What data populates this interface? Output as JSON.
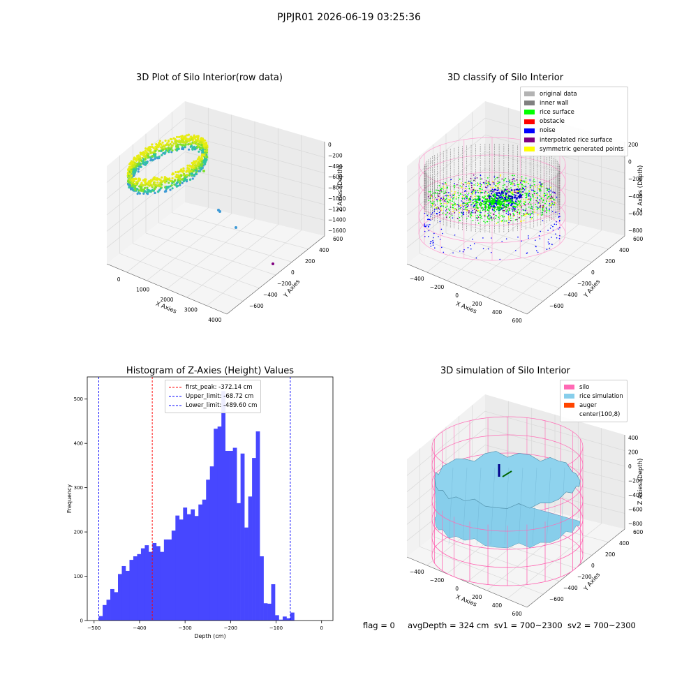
{
  "figure": {
    "suptitle": "PJPJR01 2026-06-19 03:25:36"
  },
  "panels": {
    "raw": {
      "title": "3D Plot of Silo Interior(row data)",
      "xlabel": "X Axies",
      "ylabel": "Y Axies",
      "zlabel": "Z Axies (Depth)",
      "xticks": [
        "0",
        "1000",
        "2000",
        "3000",
        "4000"
      ],
      "yticks": [
        "600",
        "400",
        "200",
        "0",
        "−200",
        "−400",
        "−600"
      ],
      "zticks": [
        "0",
        "−200",
        "−400",
        "−600",
        "−800",
        "−1000",
        "−1200",
        "−1400",
        "−1600"
      ],
      "colormap": [
        "#3e9ad6",
        "#32c4a1",
        "#7ddf2e",
        "#c8e61a",
        "#e7ec12"
      ]
    },
    "classify": {
      "title": "3D classify of Silo Interior",
      "xlabel": "X Axies",
      "ylabel": "Y Axies",
      "zlabel": "Z Axies (Depth)",
      "xticks": [
        "−400",
        "−200",
        "0",
        "200",
        "400",
        "600"
      ],
      "yticks": [
        "600",
        "400",
        "200",
        "0",
        "−200",
        "−400",
        "−600"
      ],
      "zticks": [
        "200",
        "0",
        "−200",
        "−400",
        "−600",
        "−800"
      ],
      "legend": [
        {
          "label": "original data",
          "color": "#b3b3b3"
        },
        {
          "label": "inner wall",
          "color": "#808080"
        },
        {
          "label": "rice surface",
          "color": "#00ff00"
        },
        {
          "label": "obstacle",
          "color": "#ff0000"
        },
        {
          "label": "noise",
          "color": "#0000ff"
        },
        {
          "label": "interpolated rice surface",
          "color": "#800080"
        },
        {
          "label": "symmetric generated points",
          "color": "#ffff00"
        }
      ]
    },
    "histogram": {
      "title": "Histogram of Z-Axies (Height) Values",
      "legend": [
        {
          "label": "first_peak: -372.14 cm",
          "color": "#ff0000"
        },
        {
          "label": "Upper_limit: -68.72 cm",
          "color": "#0000ff"
        },
        {
          "label": "Lower_limit: -489.60 cm",
          "color": "#0000ff"
        }
      ]
    },
    "simulation": {
      "title": "3D simulation of Silo Interior",
      "xlabel": "X Axies",
      "ylabel": "Y Axies",
      "zlabel": "Z Axies (Depth)",
      "xticks": [
        "−400",
        "−200",
        "0",
        "200",
        "400",
        "600"
      ],
      "yticks": [
        "600",
        "400",
        "200",
        "0",
        "−200",
        "−400",
        "−600"
      ],
      "zticks": [
        "400",
        "200",
        "0",
        "−200",
        "−400",
        "−600",
        "−800"
      ],
      "legend": [
        {
          "label": "silo",
          "color": "#ff69b4"
        },
        {
          "label": "rice simulation",
          "color": "#87ceeb"
        },
        {
          "label": "auger",
          "color": "#ff4500"
        },
        {
          "label": "center(100,8)",
          "color": "#ffffff"
        }
      ]
    }
  },
  "status": {
    "flag": "flag = 0",
    "avg_depth": "avgDepth = 324 cm",
    "sv1": "sv1 = 700~2300",
    "sv2": "sv2 = 700~2300"
  },
  "chart_data": [
    {
      "type": "bar",
      "title": "Histogram of Z-Axies (Height) Values",
      "xlabel": "Depth (cm)",
      "ylabel": "Frequency",
      "xlim": [
        -515,
        25
      ],
      "ylim": [
        0,
        550
      ],
      "xticks": [
        -500,
        -400,
        -300,
        -200,
        -100,
        0
      ],
      "yticks": [
        0,
        100,
        200,
        300,
        400,
        500
      ],
      "bar_color": "#4747ff",
      "bin_width": 8.42,
      "bin_start": -489.6,
      "values": [
        10,
        35,
        47,
        71,
        64,
        105,
        123,
        112,
        137,
        145,
        150,
        163,
        170,
        155,
        175,
        168,
        155,
        183,
        183,
        203,
        237,
        228,
        255,
        240,
        251,
        236,
        262,
        273,
        318,
        348,
        433,
        438,
        518,
        383,
        383,
        390,
        265,
        377,
        210,
        280,
        367,
        427,
        145,
        39,
        38,
        82,
        12,
        2,
        9,
        5,
        18
      ],
      "vlines": [
        {
          "x": -372.14,
          "color": "#ff0000",
          "label": "first_peak: -372.14 cm"
        },
        {
          "x": -68.72,
          "color": "#0000ff",
          "label": "Upper_limit: -68.72 cm"
        },
        {
          "x": -489.6,
          "color": "#0000ff",
          "label": "Lower_limit: -489.60 cm"
        }
      ],
      "legend_position": "upper center"
    }
  ]
}
